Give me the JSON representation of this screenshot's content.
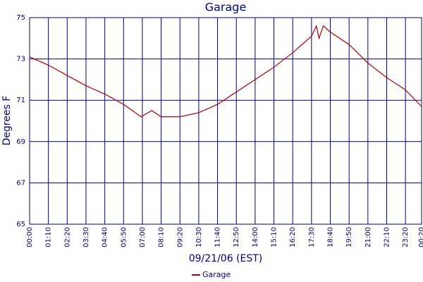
{
  "chart_data": {
    "type": "line",
    "title": "Garage",
    "x_label": "09/21/06 (EST)",
    "y_label": "Degrees F",
    "x": [
      0,
      70,
      140,
      210,
      280,
      350,
      415,
      455,
      490,
      560,
      630,
      700,
      770,
      840,
      910,
      980,
      1050,
      1068,
      1078,
      1094,
      1120,
      1190,
      1260,
      1330,
      1400,
      1460
    ],
    "series": [
      {
        "name": "Garage",
        "color": "#b00000",
        "values": [
          73.1,
          72.7,
          72.2,
          71.7,
          71.3,
          70.8,
          70.2,
          70.5,
          70.2,
          70.2,
          70.4,
          70.8,
          71.4,
          72.0,
          72.6,
          73.3,
          74.1,
          74.6,
          74.0,
          74.6,
          74.3,
          73.7,
          72.8,
          72.1,
          71.5,
          70.7
        ]
      }
    ],
    "xlim": [
      0,
      1460
    ],
    "xticks": [
      {
        "value": 0,
        "label": "00:00"
      },
      {
        "value": 70,
        "label": "01:10"
      },
      {
        "value": 140,
        "label": "02:20"
      },
      {
        "value": 210,
        "label": "03:30"
      },
      {
        "value": 280,
        "label": "04:40"
      },
      {
        "value": 350,
        "label": "05:50"
      },
      {
        "value": 420,
        "label": "07:00"
      },
      {
        "value": 490,
        "label": "08:10"
      },
      {
        "value": 560,
        "label": "09:20"
      },
      {
        "value": 630,
        "label": "10:30"
      },
      {
        "value": 700,
        "label": "11:40"
      },
      {
        "value": 770,
        "label": "12:50"
      },
      {
        "value": 840,
        "label": "14:00"
      },
      {
        "value": 910,
        "label": "15:10"
      },
      {
        "value": 980,
        "label": "16:20"
      },
      {
        "value": 1050,
        "label": "17:30"
      },
      {
        "value": 1120,
        "label": "18:40"
      },
      {
        "value": 1190,
        "label": "19:50"
      },
      {
        "value": 1260,
        "label": "21:00"
      },
      {
        "value": 1330,
        "label": "22:10"
      },
      {
        "value": 1400,
        "label": "23:20"
      },
      {
        "value": 1460,
        "label": "00:20"
      }
    ],
    "ylim": [
      65,
      75
    ],
    "yticks": [
      65,
      67,
      69,
      71,
      73,
      75
    ],
    "grid": true
  }
}
